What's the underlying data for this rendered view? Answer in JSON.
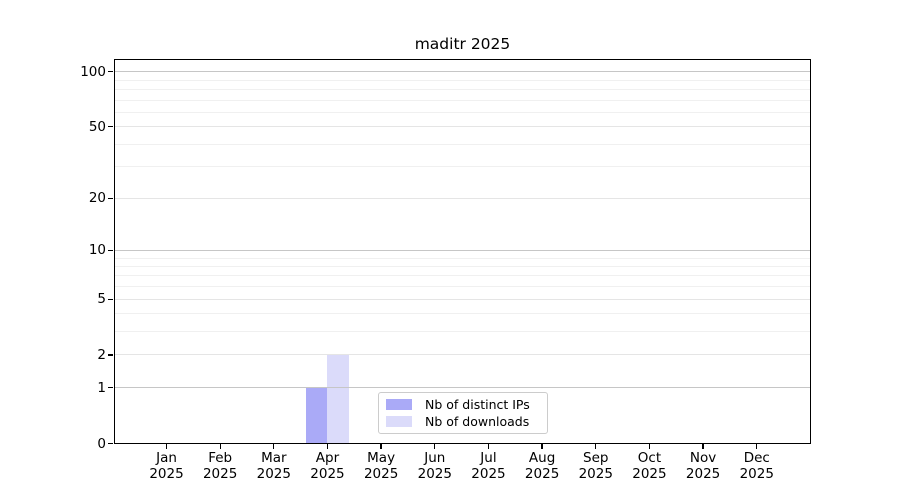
{
  "chart_data": {
    "type": "bar",
    "title": "maditr 2025",
    "x_tick_labels": [
      {
        "month": "Jan",
        "year": "2025"
      },
      {
        "month": "Feb",
        "year": "2025"
      },
      {
        "month": "Mar",
        "year": "2025"
      },
      {
        "month": "Apr",
        "year": "2025"
      },
      {
        "month": "May",
        "year": "2025"
      },
      {
        "month": "Jun",
        "year": "2025"
      },
      {
        "month": "Jul",
        "year": "2025"
      },
      {
        "month": "Aug",
        "year": "2025"
      },
      {
        "month": "Sep",
        "year": "2025"
      },
      {
        "month": "Oct",
        "year": "2025"
      },
      {
        "month": "Nov",
        "year": "2025"
      },
      {
        "month": "Dec",
        "year": "2025"
      }
    ],
    "series": [
      {
        "name": "Nb of distinct IPs",
        "color": "#aaaaf7",
        "values": [
          0,
          0,
          0,
          1,
          0,
          0,
          0,
          0,
          0,
          0,
          0,
          0
        ]
      },
      {
        "name": "Nb of downloads",
        "color": "#dbdbfa",
        "values": [
          0,
          0,
          0,
          2,
          0,
          0,
          0,
          0,
          0,
          0,
          0,
          0
        ]
      }
    ],
    "y_scale": "log10(1+x)",
    "y_axis_ticks": [
      0,
      1,
      2,
      5,
      10,
      20,
      50,
      100
    ],
    "y_decade_gridlines": [
      1,
      10,
      100
    ],
    "y_sub_gridlines": [
      2,
      5,
      20,
      50
    ],
    "y_minor_gridlines": [
      3,
      4,
      6,
      7,
      8,
      9,
      30,
      40,
      60,
      70,
      80,
      90
    ],
    "ylim": [
      0,
      117
    ],
    "grid": "horizontal",
    "legend_position": "bottom-center"
  },
  "colors": {
    "background": "#ffffff",
    "frame": "#000000",
    "decade_grid": "#c6c6c6",
    "sub_grid": "#e5e5e5",
    "minor_grid": "#f0f0f0",
    "legend_border": "#cccccc",
    "text": "#000000"
  }
}
